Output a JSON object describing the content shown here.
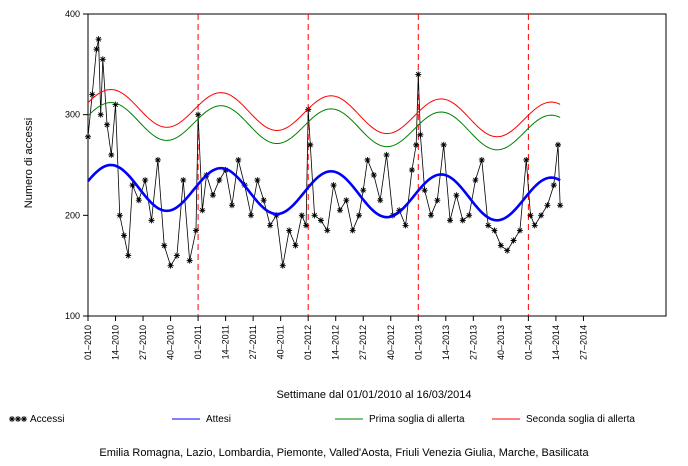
{
  "chart_data": {
    "type": "line",
    "title": "",
    "xlabel": "Settimane dal 01/01/2010 al 16/03/2014",
    "ylabel": "Numero di accessi",
    "ylim": [
      100,
      400
    ],
    "yticks": [
      100,
      200,
      300,
      400
    ],
    "week_range": [
      1,
      274
    ],
    "xticks": [
      {
        "week": 1,
        "label": "01–2010"
      },
      {
        "week": 14,
        "label": "14–2010"
      },
      {
        "week": 27,
        "label": "27–2010"
      },
      {
        "week": 40,
        "label": "40–2010"
      },
      {
        "week": 53,
        "label": "01–2011"
      },
      {
        "week": 66,
        "label": "14–2011"
      },
      {
        "week": 79,
        "label": "27–2011"
      },
      {
        "week": 92,
        "label": "40–2011"
      },
      {
        "week": 105,
        "label": "01–2012"
      },
      {
        "week": 118,
        "label": "14–2012"
      },
      {
        "week": 131,
        "label": "27–2012"
      },
      {
        "week": 144,
        "label": "40–2012"
      },
      {
        "week": 157,
        "label": "01–2013"
      },
      {
        "week": 170,
        "label": "14–2013"
      },
      {
        "week": 183,
        "label": "27–2013"
      },
      {
        "week": 196,
        "label": "40–2013"
      },
      {
        "week": 209,
        "label": "01–2014"
      },
      {
        "week": 222,
        "label": "14–2014"
      },
      {
        "week": 235,
        "label": "27–2014"
      }
    ],
    "year_boundaries": [
      53,
      105,
      157,
      209
    ],
    "series": [
      {
        "name": "Accessi",
        "color": "#000000",
        "marker": "asterisk",
        "x": [
          1,
          3,
          5,
          6,
          7,
          8,
          10,
          12,
          14,
          16,
          18,
          20,
          22,
          25,
          28,
          31,
          34,
          37,
          40,
          43,
          46,
          49,
          52,
          53,
          55,
          57,
          60,
          63,
          66,
          69,
          72,
          75,
          78,
          81,
          84,
          87,
          90,
          93,
          96,
          99,
          102,
          104,
          105,
          106,
          108,
          111,
          114,
          117,
          120,
          123,
          126,
          129,
          131,
          133,
          136,
          139,
          142,
          145,
          148,
          151,
          154,
          156,
          157,
          158,
          160,
          163,
          166,
          169,
          172,
          175,
          178,
          181,
          184,
          187,
          190,
          193,
          196,
          199,
          202,
          205,
          208,
          210,
          212,
          215,
          218,
          221,
          223,
          224
        ],
        "values": [
          278,
          320,
          365,
          375,
          300,
          355,
          290,
          260,
          310,
          200,
          180,
          160,
          230,
          215,
          235,
          195,
          255,
          170,
          150,
          160,
          235,
          155,
          185,
          300,
          205,
          240,
          220,
          235,
          245,
          210,
          255,
          230,
          200,
          235,
          215,
          190,
          200,
          150,
          185,
          170,
          200,
          190,
          305,
          270,
          200,
          195,
          185,
          230,
          205,
          215,
          185,
          200,
          225,
          255,
          240,
          215,
          260,
          200,
          205,
          190,
          245,
          270,
          340,
          280,
          225,
          200,
          215,
          270,
          195,
          220,
          195,
          200,
          235,
          255,
          190,
          185,
          170,
          165,
          175,
          185,
          255,
          200,
          190,
          200,
          210,
          230,
          270,
          210
        ]
      },
      {
        "name": "Attesi",
        "color": "#0000ff",
        "curve": {
          "mean": 222,
          "amp": 22,
          "trend": -0.06,
          "peak_week": 12,
          "period": 52
        }
      },
      {
        "name": "Prima soglia di allerta",
        "color": "#008000",
        "curve": {
          "mean": 288,
          "amp": 18,
          "trend": -0.06,
          "peak_week": 12,
          "period": 52
        }
      },
      {
        "name": "Seconda soglia di allerta",
        "color": "#ff0000",
        "curve": {
          "mean": 301,
          "amp": 18,
          "trend": -0.06,
          "peak_week": 12,
          "period": 52
        }
      }
    ]
  },
  "legend": {
    "position": "bottom",
    "items": [
      "Accessi",
      "Attesi",
      "Prima soglia di allerta",
      "Seconda soglia di allerta"
    ]
  },
  "footer": "Emilia Romagna, Lazio, Lombardia, Piemonte, Valled'Aosta, Friuli Venezia Giulia, Marche, Basilicata"
}
